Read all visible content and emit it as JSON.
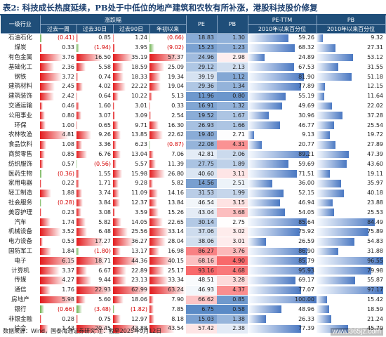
{
  "title": "表2: 科技成长热度延续，PB处于中低位的地产建筑和农牧有所补涨，港股科技股价修复",
  "source": "数据来源：Wind，国泰海通证券研究  注：截至2025年9月12日",
  "watermark": "www.365jz.com",
  "colors": {
    "header_bg": "#1f4e79",
    "header_text": "#ffffff",
    "negative_text": "#d40000",
    "positive_fill": "#e31a1c",
    "negative_fill": "#6ab04c",
    "pe_pb_high": "#f8696b",
    "pe_pb_low": "#5a8ac6",
    "pctile_bar": "#4a78c2"
  },
  "columns": {
    "group_returns": "涨跌幅",
    "group_pe_pctile": "PE-TTM",
    "group_pb_pctile": "PB",
    "industry": "一级行业",
    "ret_1m": "过去一周",
    "ret_30d": "过去30日",
    "ret_90d": "过去90日",
    "ret_ytd": "年初以来",
    "pe": "PE",
    "pb": "PB",
    "pe_pctile": "2010年以来百分位",
    "pb_pctile": "2010年以来百分位"
  },
  "rows": [
    {
      "industry": "石油石化",
      "w": "(0.41)",
      "d30": "0.85",
      "d90": "1.24",
      "ytd": "(0.66)",
      "pe": "18.83",
      "pb": "1.30",
      "pe_pct": "59.26",
      "pb_pct": "9.32"
    },
    {
      "industry": "煤炭",
      "w": "0.33",
      "d30": "(1.94)",
      "d90": "3.95",
      "ytd": "(9.02)",
      "pe": "15.23",
      "pb": "1.23",
      "pe_pct": "68.32",
      "pb_pct": "27.31"
    },
    {
      "industry": "有色金属",
      "w": "3.76",
      "d30": "16.50",
      "d90": "35.19",
      "ytd": "57.37",
      "pe": "24.96",
      "pb": "2.98",
      "pe_pct": "24.89",
      "pb_pct": "53.12"
    },
    {
      "industry": "基础化工",
      "w": "2.36",
      "d30": "5.58",
      "d90": "18.59",
      "ytd": "25.09",
      "pe": "29.12",
      "pb": "2.13",
      "pe_pct": "67.53",
      "pb_pct": "31.55"
    },
    {
      "industry": "钢铁",
      "w": "3.72",
      "d30": "0.74",
      "d90": "18.33",
      "ytd": "19.34",
      "pe": "39.19",
      "pb": "1.12",
      "pe_pct": "81.90",
      "pb_pct": "51.18"
    },
    {
      "industry": "建筑材料",
      "w": "2.45",
      "d30": "4.02",
      "d90": "22.22",
      "ytd": "19.04",
      "pe": "29.36",
      "pb": "1.34",
      "pe_pct": "77.89",
      "pb_pct": "12.15"
    },
    {
      "industry": "建筑装饰",
      "w": "2.42",
      "d30": "0.64",
      "d90": "10.22",
      "ytd": "5.13",
      "pe": "11.96",
      "pb": "0.80",
      "pe_pct": "55.19",
      "pb_pct": "11.64"
    },
    {
      "industry": "交通运输",
      "w": "0.46",
      "d30": "1.60",
      "d90": "3.01",
      "ytd": "0.33",
      "pe": "16.91",
      "pb": "1.32",
      "pe_pct": "49.69",
      "pb_pct": "22.02"
    },
    {
      "industry": "公用事业",
      "w": "0.80",
      "d30": "3.07",
      "d90": "3.09",
      "ytd": "2.54",
      "pe": "19.52",
      "pb": "1.67",
      "pe_pct": "30.96",
      "pb_pct": "37.28"
    },
    {
      "industry": "环保",
      "w": "1.00",
      "d30": "0.65",
      "d90": "9.71",
      "ytd": "16.30",
      "pe": "26.93",
      "pb": "1.66",
      "pe_pct": "46.77",
      "pb_pct": "25.54"
    },
    {
      "industry": "农林牧渔",
      "w": "4.81",
      "d30": "9.26",
      "d90": "13.85",
      "ytd": "22.62",
      "pe": "19.40",
      "pb": "2.71",
      "pe_pct": "9.13",
      "pb_pct": "19.72"
    },
    {
      "industry": "食品饮料",
      "w": "1.08",
      "d30": "3.36",
      "d90": "6.23",
      "ytd": "(0.87)",
      "pe": "22.08",
      "pb": "4.31",
      "pe_pct": "20.77",
      "pb_pct": "27.89"
    },
    {
      "industry": "商贸零售",
      "w": "0.85",
      "d30": "6.76",
      "d90": "13.04",
      "ytd": "7.06",
      "pe": "42.81",
      "pb": "2.06",
      "pe_pct": "89.21",
      "pb_pct": "47.39"
    },
    {
      "industry": "纺织服饰",
      "w": "0.57",
      "d30": "(0.56)",
      "d90": "5.57",
      "ytd": "11.39",
      "pe": "27.75",
      "pb": "1.89",
      "pe_pct": "59.69",
      "pb_pct": "43.60"
    },
    {
      "industry": "医药生物",
      "w": "(0.36)",
      "d30": "1.55",
      "d90": "15.98",
      "ytd": "26.80",
      "pe": "40.60",
      "pb": "3.11",
      "pe_pct": "71.51",
      "pb_pct": "19.11"
    },
    {
      "industry": "家用电器",
      "w": "0.22",
      "d30": "1.71",
      "d90": "9.28",
      "ytd": "5.82",
      "pe": "14.56",
      "pb": "2.51",
      "pe_pct": "36.00",
      "pb_pct": "35.97"
    },
    {
      "industry": "轻工制造",
      "w": "1.88",
      "d30": "3.74",
      "d90": "11.09",
      "ytd": "14.16",
      "pe": "31.53",
      "pb": "1.99",
      "pe_pct": "52.15",
      "pb_pct": "40.18"
    },
    {
      "industry": "社会服务",
      "w": "(0.28)",
      "d30": "3.84",
      "d90": "12.37",
      "ytd": "13.84",
      "pe": "46.54",
      "pb": "3.15",
      "pe_pct": "46.94",
      "pb_pct": "23.88"
    },
    {
      "industry": "美容护理",
      "w": "0.23",
      "d30": "3.08",
      "d90": "3.59",
      "ytd": "15.26",
      "pe": "43.04",
      "pb": "3.68",
      "pe_pct": "54.05",
      "pb_pct": "25.53"
    },
    {
      "industry": "汽车",
      "w": "1.74",
      "d30": "5.82",
      "d90": "14.05",
      "ytd": "22.65",
      "pe": "30.14",
      "pb": "2.75",
      "pe_pct": "85.64",
      "pb_pct": "84.49"
    },
    {
      "industry": "机械设备",
      "w": "3.52",
      "d30": "6.48",
      "d90": "25.56",
      "ytd": "33.14",
      "pe": "37.06",
      "pb": "3.02",
      "pe_pct": "75.92",
      "pb_pct": "75.89"
    },
    {
      "industry": "电力设备",
      "w": "0.53",
      "d30": "17.27",
      "d90": "36.27",
      "ytd": "28.04",
      "pe": "38.06",
      "pb": "3.01",
      "pe_pct": "26.59",
      "pb_pct": "54.83"
    },
    {
      "industry": "国防军工",
      "w": "1.84",
      "d30": "(1.80)",
      "d90": "13.17",
      "ytd": "16.98",
      "pe": "86.27",
      "pb": "3.76",
      "pe_pct": "86.90",
      "pb_pct": "31.88"
    },
    {
      "industry": "电子",
      "w": "6.15",
      "d30": "18.71",
      "d90": "44.36",
      "ytd": "40.15",
      "pe": "68.16",
      "pb": "4.90",
      "pe_pct": "85.79",
      "pb_pct": "96.55"
    },
    {
      "industry": "计算机",
      "w": "3.37",
      "d30": "6.67",
      "d90": "22.89",
      "ytd": "25.17",
      "pe": "93.16",
      "pb": "4.68",
      "pe_pct": "95.93",
      "pb_pct": "79.98"
    },
    {
      "industry": "传媒",
      "w": "4.27",
      "d30": "9.44",
      "d90": "23.13",
      "ytd": "33.34",
      "pe": "48.51",
      "pb": "3.28",
      "pe_pct": "69.17",
      "pb_pct": "55.87"
    },
    {
      "industry": "通信",
      "w": "1.76",
      "d30": "22.93",
      "d90": "62.99",
      "ytd": "63.24",
      "pe": "46.93",
      "pb": "4.37",
      "pe_pct": "77.07",
      "pb_pct": "97.17"
    },
    {
      "industry": "房地产",
      "w": "5.98",
      "d30": "5.60",
      "d90": "18.06",
      "ytd": "7.90",
      "pe": "66.62",
      "pb": "0.85",
      "pe_pct": "100.00",
      "pb_pct": "15.42"
    },
    {
      "industry": "银行",
      "w": "(0.66)",
      "d30": "(3.48)",
      "d90": "(1.82)",
      "ytd": "7.85",
      "pe": "6.75",
      "pb": "0.58",
      "pe_pct": "48.96",
      "pb_pct": "18.59"
    },
    {
      "industry": "非银金融",
      "w": "0.28",
      "d30": "0.75",
      "d90": "12.97",
      "ytd": "8.18",
      "pe": "15.03",
      "pb": "1.38",
      "pe_pct": "26.33",
      "pb_pct": "21.24"
    },
    {
      "industry": "综合",
      "w": "1.43",
      "d30": "20.45",
      "d90": "43.88",
      "ytd": "43.54",
      "pe": "57.42",
      "pb": "2.38",
      "pe_pct": "77.39",
      "pb_pct": "45.79"
    }
  ]
}
